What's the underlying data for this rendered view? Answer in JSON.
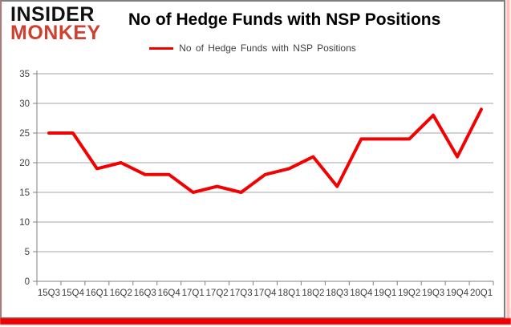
{
  "logo": {
    "line1": "INSIDER",
    "line2": "MONKEY"
  },
  "header": {
    "title": "No of Hedge Funds with NSP Positions"
  },
  "legend": {
    "label": "No of Hedge Funds with NSP Positions"
  },
  "colors": {
    "line": "#f30000",
    "logo_red": "#d04030",
    "grid": "#a6a6a6",
    "axis": "#808080",
    "tick_text": "#3f3f3f",
    "border": "#7f7f7f",
    "bottom_bar": "#ee0303"
  },
  "chart_data": {
    "type": "line",
    "title": "No of Hedge Funds with NSP Positions",
    "xlabel": "",
    "ylabel": "",
    "categories": [
      "15Q3",
      "15Q4",
      "16Q1",
      "16Q2",
      "16Q3",
      "16Q4",
      "17Q1",
      "17Q2",
      "17Q3",
      "17Q4",
      "18Q1",
      "18Q2",
      "18Q3",
      "18Q4",
      "19Q1",
      "19Q2",
      "19Q3",
      "19Q4",
      "20Q1"
    ],
    "series": [
      {
        "name": "No of Hedge Funds with NSP Positions",
        "color": "#f30000",
        "values": [
          25,
          25,
          19,
          20,
          18,
          18,
          15,
          16,
          15,
          18,
          19,
          21,
          16,
          24,
          24,
          24,
          28,
          21,
          29
        ]
      }
    ],
    "ylim": [
      0,
      35
    ],
    "ytick_step": 5,
    "grid": "horizontal",
    "legend_position": "top"
  }
}
